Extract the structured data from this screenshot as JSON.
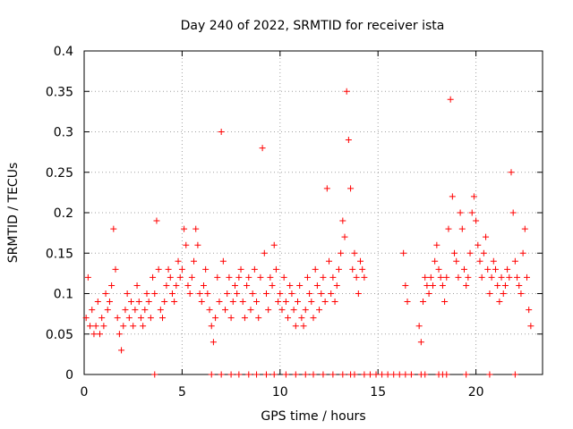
{
  "chart_data": {
    "type": "scatter",
    "title": "Day 240 of 2022, SRMTID for receiver ista",
    "xlabel": "GPS time / hours",
    "ylabel": "SRMTID / TECUs",
    "xlim": [
      0,
      23.4
    ],
    "ylim": [
      0,
      0.4
    ],
    "x_ticks": [
      "0",
      "5",
      "10",
      "15",
      "20"
    ],
    "y_ticks": [
      "0",
      "0.05",
      "0.1",
      "0.15",
      "0.2",
      "0.25",
      "0.3",
      "0.35",
      "0.4"
    ],
    "grid": true,
    "marker": "plus",
    "color": "#ff0000",
    "series": [
      {
        "values_x": [
          0.1,
          0.2,
          0.3,
          0.4,
          0.5,
          0.6,
          0.7,
          0.8,
          0.9,
          1.0,
          1.1,
          1.2,
          1.3,
          1.4,
          1.5,
          1.6,
          1.7,
          1.8,
          1.9,
          2.0,
          2.1,
          2.2,
          2.3,
          2.4,
          2.5,
          2.6,
          2.7,
          2.8,
          2.9,
          3.0,
          3.1,
          3.2,
          3.3,
          3.4,
          3.5,
          3.6,
          3.7,
          3.8,
          3.9,
          4.0,
          4.1,
          4.2,
          4.3,
          4.4,
          4.5,
          4.6,
          4.7,
          4.8,
          4.9,
          5.0,
          5.1,
          5.2,
          5.3,
          5.4,
          5.5,
          5.6,
          5.7,
          5.8,
          5.9,
          6.0,
          6.1,
          6.2,
          6.3,
          6.4,
          6.5,
          6.6,
          6.7,
          6.8,
          6.9,
          7.0,
          7.1,
          7.2,
          7.3,
          7.4,
          7.5,
          7.6,
          7.7,
          7.8,
          7.9,
          8.0,
          8.1,
          8.2,
          8.3,
          8.4,
          8.5,
          8.6,
          8.7,
          8.8,
          8.9,
          9.0,
          9.1,
          9.2,
          9.3,
          9.4,
          9.5,
          9.6,
          9.7,
          9.8,
          9.9,
          10.0,
          10.1,
          10.2,
          10.3,
          10.4,
          10.5,
          10.6,
          10.7,
          10.8,
          10.9,
          11.0,
          11.1,
          11.2,
          11.3,
          11.4,
          11.5,
          11.6,
          11.7,
          11.8,
          11.9,
          12.0,
          12.1,
          12.2,
          12.3,
          12.4,
          12.5,
          12.6,
          12.7,
          12.8,
          12.9,
          13.0,
          13.1,
          13.2,
          13.3,
          13.4,
          13.5,
          13.6,
          13.7,
          13.8,
          13.9,
          14.0,
          14.1,
          14.2,
          14.3,
          16.3,
          16.4,
          16.5,
          17.1,
          17.2,
          17.3,
          17.4,
          17.5,
          17.6,
          17.7,
          17.8,
          17.9,
          18.0,
          18.1,
          18.2,
          18.3,
          18.4,
          18.5,
          18.6,
          18.7,
          18.8,
          18.9,
          19.0,
          19.1,
          19.2,
          19.3,
          19.4,
          19.5,
          19.6,
          19.7,
          19.8,
          19.9,
          20.0,
          20.1,
          20.2,
          20.3,
          20.4,
          20.5,
          20.6,
          20.7,
          20.8,
          20.9,
          21.0,
          21.1,
          21.2,
          21.3,
          21.4,
          21.5,
          21.6,
          21.7,
          21.8,
          21.9,
          22.0,
          22.1,
          22.2,
          22.3,
          22.4,
          22.5,
          22.6,
          22.7,
          22.8
        ],
        "values_y": [
          0.07,
          0.12,
          0.06,
          0.08,
          0.05,
          0.06,
          0.09,
          0.05,
          0.07,
          0.06,
          0.1,
          0.08,
          0.09,
          0.11,
          0.18,
          0.13,
          0.07,
          0.05,
          0.03,
          0.06,
          0.08,
          0.1,
          0.07,
          0.09,
          0.06,
          0.08,
          0.11,
          0.09,
          0.07,
          0.06,
          0.08,
          0.1,
          0.09,
          0.07,
          0.12,
          0.1,
          0.19,
          0.13,
          0.08,
          0.07,
          0.09,
          0.11,
          0.13,
          0.12,
          0.1,
          0.09,
          0.11,
          0.14,
          0.12,
          0.13,
          0.18,
          0.16,
          0.11,
          0.1,
          0.12,
          0.14,
          0.18,
          0.16,
          0.1,
          0.09,
          0.11,
          0.13,
          0.1,
          0.08,
          0.06,
          0.04,
          0.07,
          0.12,
          0.09,
          0.3,
          0.14,
          0.08,
          0.1,
          0.12,
          0.07,
          0.09,
          0.11,
          0.1,
          0.12,
          0.13,
          0.09,
          0.07,
          0.11,
          0.12,
          0.08,
          0.1,
          0.13,
          0.09,
          0.07,
          0.12,
          0.28,
          0.15,
          0.1,
          0.08,
          0.12,
          0.11,
          0.16,
          0.13,
          0.09,
          0.1,
          0.08,
          0.12,
          0.09,
          0.07,
          0.11,
          0.1,
          0.08,
          0.06,
          0.09,
          0.11,
          0.07,
          0.06,
          0.08,
          0.12,
          0.1,
          0.09,
          0.07,
          0.13,
          0.11,
          0.08,
          0.1,
          0.12,
          0.09,
          0.23,
          0.14,
          0.1,
          0.12,
          0.09,
          0.11,
          0.13,
          0.15,
          0.19,
          0.17,
          0.35,
          0.29,
          0.23,
          0.13,
          0.15,
          0.12,
          0.1,
          0.14,
          0.13,
          0.12,
          0.15,
          0.11,
          0.09,
          0.06,
          0.04,
          0.09,
          0.12,
          0.11,
          0.1,
          0.12,
          0.11,
          0.14,
          0.16,
          0.13,
          0.12,
          0.11,
          0.09,
          0.12,
          0.18,
          0.34,
          0.22,
          0.15,
          0.14,
          0.12,
          0.2,
          0.18,
          0.13,
          0.11,
          0.12,
          0.15,
          0.2,
          0.22,
          0.19,
          0.16,
          0.14,
          0.12,
          0.15,
          0.17,
          0.13,
          0.1,
          0.12,
          0.14,
          0.13,
          0.11,
          0.09,
          0.12,
          0.1,
          0.11,
          0.13,
          0.12,
          0.25,
          0.2,
          0.14,
          0.12,
          0.11,
          0.1,
          0.15,
          0.18,
          0.12,
          0.08,
          0.06
        ]
      }
    ],
    "zero_markers_x": [
      3.6,
      6.5,
      7.0,
      7.5,
      7.9,
      8.4,
      8.8,
      9.3,
      9.7,
      10.3,
      10.8,
      11.3,
      11.7,
      12.2,
      12.7,
      13.2,
      13.6,
      13.8,
      14.3,
      14.6,
      14.9,
      15.2,
      15.5,
      15.8,
      16.1,
      16.4,
      16.7,
      17.2,
      17.4,
      18.1,
      18.3,
      18.5,
      19.5,
      20.7,
      22.0
    ]
  }
}
